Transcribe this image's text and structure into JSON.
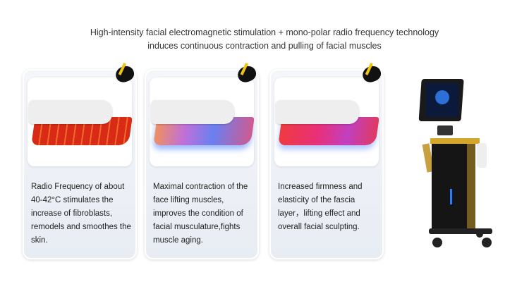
{
  "headline": {
    "line1": "High-intensity facial electromagnetic stimulation + mono-polar radio frequency technology",
    "line2": "induces continuous contraction and pulling of facial muscles"
  },
  "cards": [
    {
      "text": "Radio Frequency of about 40-42°C stimulates the increase of fibroblasts, remodels and smoothes the skin.",
      "muscle_color": "#e0341c"
    },
    {
      "text": "Maximal contraction of the face lifting muscles, improves the condition of facial musculature,fights muscle aging.",
      "muscle_color": "#c070d8"
    },
    {
      "text": "Increased firmness and elasticity of the fascia layer，lifting effect and overall facial sculpting.",
      "muscle_color": "#e8307a"
    }
  ],
  "colors": {
    "accent": "#f0c514",
    "machine": "#151515"
  }
}
